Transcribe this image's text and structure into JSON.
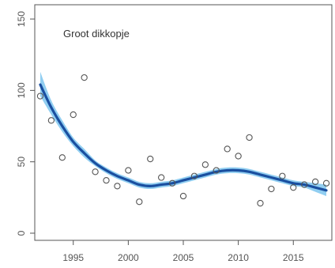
{
  "chart_data": {
    "type": "scatter",
    "title": "Groot dikkopje",
    "xlabel": "",
    "ylabel": "",
    "xlim": [
      1991.5,
      2018.5
    ],
    "ylim": [
      -5,
      160
    ],
    "x_ticks": [
      1995,
      2000,
      2005,
      2010,
      2015
    ],
    "y_ticks": [
      0,
      50,
      100,
      150
    ],
    "grid": false,
    "colors": {
      "trend": "#1a4fa0",
      "band": "#56b4ea",
      "points": "#555555",
      "axis": "#555555"
    },
    "series": [
      {
        "type": "scatter",
        "x": [
          1992,
          1993,
          1994,
          1995,
          1996,
          1997,
          1998,
          1999,
          2000,
          2001,
          2002,
          2003,
          2004,
          2005,
          2006,
          2007,
          2008,
          2009,
          2010,
          2011,
          2012,
          2013,
          2014,
          2015,
          2016,
          2017,
          2018
        ],
        "y": [
          96,
          79,
          53,
          83,
          109,
          43,
          37,
          33,
          44,
          22,
          52,
          39,
          35,
          26,
          40,
          48,
          44,
          59,
          54,
          67,
          21,
          31,
          40,
          32,
          34,
          36,
          35
        ]
      },
      {
        "type": "line",
        "x": [
          1992,
          1993,
          1994,
          1995,
          1996,
          1997,
          1998,
          1999,
          2000,
          2001,
          2002,
          2003,
          2004,
          2005,
          2006,
          2007,
          2008,
          2009,
          2010,
          2011,
          2012,
          2013,
          2014,
          2015,
          2016,
          2017,
          2018
        ],
        "y": [
          104,
          88,
          75,
          64,
          56,
          49,
          44,
          40,
          37,
          34,
          33,
          34,
          35,
          37,
          39,
          41,
          43,
          44,
          44,
          43,
          41,
          39,
          37,
          35,
          34,
          32,
          30
        ],
        "band_lower": [
          96,
          83,
          71,
          61,
          53,
          47,
          42,
          38,
          35,
          32,
          31,
          32,
          33,
          35,
          37,
          39,
          41,
          42,
          42,
          41,
          39,
          37,
          35,
          33,
          32,
          29,
          26
        ],
        "band_upper": [
          113,
          93,
          79,
          67,
          59,
          51,
          46,
          42,
          39,
          36,
          35,
          36,
          37,
          39,
          41,
          43,
          45,
          46,
          46,
          45,
          43,
          41,
          39,
          37,
          36,
          35,
          34
        ]
      }
    ]
  }
}
